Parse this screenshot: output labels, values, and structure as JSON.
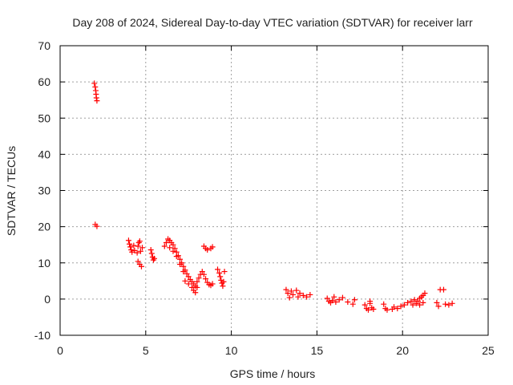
{
  "chart_data": {
    "type": "scatter",
    "title": "Day 208 of 2024, Sidereal Day-to-day VTEC variation (SDTVAR) for receiver larr",
    "xlabel": "GPS time / hours",
    "ylabel": "SDTVAR / TECUs",
    "xlim": [
      0,
      25
    ],
    "ylim": [
      -10,
      70
    ],
    "xticks": [
      0,
      5,
      10,
      15,
      20,
      25
    ],
    "yticks": [
      -10,
      0,
      10,
      20,
      30,
      40,
      50,
      60,
      70
    ],
    "grid": true,
    "marker": "+",
    "series": [
      {
        "name": "SDTVAR",
        "color": "#ff0000",
        "points": [
          [
            2.0,
            59.6
          ],
          [
            2.05,
            58.6
          ],
          [
            2.08,
            57.6
          ],
          [
            2.1,
            56.6
          ],
          [
            2.12,
            55.6
          ],
          [
            2.15,
            54.8
          ],
          [
            2.05,
            20.6
          ],
          [
            2.15,
            20.1
          ],
          [
            4.0,
            16.2
          ],
          [
            4.05,
            15.2
          ],
          [
            4.1,
            14.4
          ],
          [
            4.15,
            13.6
          ],
          [
            4.2,
            13.0
          ],
          [
            4.3,
            14.8
          ],
          [
            4.35,
            13.4
          ],
          [
            4.5,
            12.8
          ],
          [
            4.55,
            14.6
          ],
          [
            4.6,
            15.6
          ],
          [
            4.65,
            16.0
          ],
          [
            4.7,
            13.2
          ],
          [
            4.8,
            14.2
          ],
          [
            4.55,
            10.4
          ],
          [
            4.65,
            9.6
          ],
          [
            4.75,
            9.0
          ],
          [
            5.3,
            13.6
          ],
          [
            5.35,
            12.6
          ],
          [
            5.4,
            11.6
          ],
          [
            5.45,
            10.8
          ],
          [
            5.5,
            11.2
          ],
          [
            6.1,
            14.6
          ],
          [
            6.2,
            15.6
          ],
          [
            6.3,
            16.6
          ],
          [
            6.4,
            16.2
          ],
          [
            6.5,
            15.6
          ],
          [
            6.6,
            15.0
          ],
          [
            6.7,
            14.0
          ],
          [
            6.8,
            13.0
          ],
          [
            6.9,
            12.0
          ],
          [
            7.0,
            11.0
          ],
          [
            7.1,
            10.0
          ],
          [
            7.2,
            9.0
          ],
          [
            7.3,
            8.0
          ],
          [
            7.4,
            7.0
          ],
          [
            7.5,
            6.2
          ],
          [
            7.6,
            5.4
          ],
          [
            7.7,
            4.8
          ],
          [
            7.8,
            4.2
          ],
          [
            7.9,
            3.6
          ],
          [
            8.0,
            3.2
          ],
          [
            6.4,
            14.2
          ],
          [
            6.6,
            13.2
          ],
          [
            6.8,
            11.8
          ],
          [
            7.0,
            9.6
          ],
          [
            7.2,
            7.6
          ],
          [
            7.3,
            5.0
          ],
          [
            7.5,
            4.2
          ],
          [
            7.7,
            3.2
          ],
          [
            7.8,
            2.4
          ],
          [
            7.9,
            1.8
          ],
          [
            8.0,
            4.8
          ],
          [
            8.1,
            5.8
          ],
          [
            8.2,
            6.8
          ],
          [
            8.3,
            7.6
          ],
          [
            8.4,
            6.8
          ],
          [
            8.5,
            5.6
          ],
          [
            8.6,
            4.6
          ],
          [
            8.7,
            4.0
          ],
          [
            8.8,
            3.8
          ],
          [
            8.9,
            4.2
          ],
          [
            8.4,
            14.6
          ],
          [
            8.5,
            14.0
          ],
          [
            8.6,
            13.6
          ],
          [
            8.8,
            14.0
          ],
          [
            8.9,
            14.4
          ],
          [
            9.2,
            8.2
          ],
          [
            9.3,
            7.2
          ],
          [
            9.35,
            6.2
          ],
          [
            9.4,
            5.2
          ],
          [
            9.45,
            4.4
          ],
          [
            9.5,
            3.6
          ],
          [
            9.55,
            4.8
          ],
          [
            9.6,
            7.6
          ],
          [
            13.2,
            2.6
          ],
          [
            13.3,
            1.6
          ],
          [
            13.4,
            0.4
          ],
          [
            13.5,
            2.2
          ],
          [
            13.6,
            1.2
          ],
          [
            13.8,
            2.4
          ],
          [
            13.9,
            0.6
          ],
          [
            14.0,
            1.6
          ],
          [
            14.2,
            1.0
          ],
          [
            14.4,
            0.6
          ],
          [
            14.6,
            1.2
          ],
          [
            15.6,
            0.2
          ],
          [
            15.7,
            -0.6
          ],
          [
            15.8,
            -1.0
          ],
          [
            15.9,
            -0.4
          ],
          [
            16.0,
            0.6
          ],
          [
            16.1,
            -0.8
          ],
          [
            16.3,
            -0.2
          ],
          [
            16.5,
            0.4
          ],
          [
            16.8,
            -0.8
          ],
          [
            17.1,
            -1.4
          ],
          [
            17.2,
            -0.2
          ],
          [
            17.8,
            -1.6
          ],
          [
            17.9,
            -2.6
          ],
          [
            18.0,
            -3.0
          ],
          [
            18.1,
            -1.2
          ],
          [
            18.2,
            -2.4
          ],
          [
            18.3,
            -2.8
          ],
          [
            18.1,
            -0.6
          ],
          [
            18.9,
            -1.4
          ],
          [
            19.0,
            -2.6
          ],
          [
            19.1,
            -3.0
          ],
          [
            19.4,
            -2.8
          ],
          [
            19.5,
            -2.2
          ],
          [
            19.7,
            -2.6
          ],
          [
            19.9,
            -2.0
          ],
          [
            20.1,
            -1.6
          ],
          [
            20.3,
            -1.0
          ],
          [
            20.5,
            -0.6
          ],
          [
            20.7,
            -0.2
          ],
          [
            20.9,
            -0.6
          ],
          [
            21.0,
            0.2
          ],
          [
            21.1,
            0.6
          ],
          [
            21.2,
            1.0
          ],
          [
            21.3,
            1.6
          ],
          [
            20.6,
            -1.6
          ],
          [
            20.8,
            -1.2
          ],
          [
            21.0,
            -1.6
          ],
          [
            21.2,
            -1.0
          ],
          [
            22.0,
            -1.0
          ],
          [
            22.1,
            -2.0
          ],
          [
            22.2,
            2.6
          ],
          [
            22.4,
            2.6
          ],
          [
            22.5,
            -1.4
          ],
          [
            22.7,
            -1.6
          ],
          [
            22.9,
            -1.2
          ]
        ]
      }
    ]
  }
}
